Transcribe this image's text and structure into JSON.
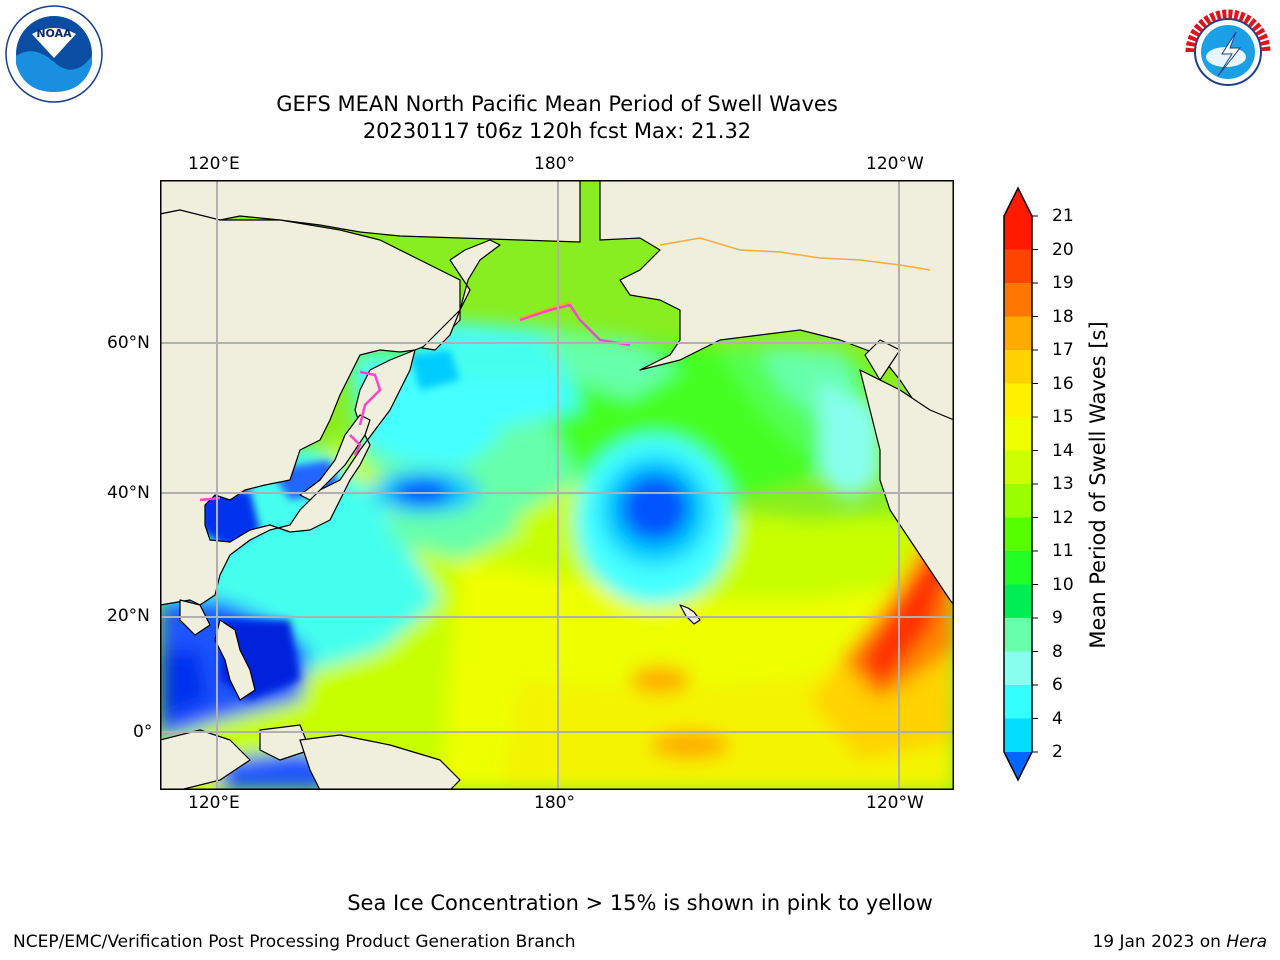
{
  "title_line1": "GEFS MEAN North Pacific Mean Period of Swell Waves",
  "title_line2": "20230117 t06z 120h fcst   Max: 21.32",
  "lon_ticks": [
    "120°E",
    "180°",
    "120°W"
  ],
  "lat_ticks": [
    "60°N",
    "40°N",
    "20°N",
    "0°"
  ],
  "colorbar": {
    "label": "Mean Period of Swell Waves [s]",
    "ticks": [
      "21",
      "20",
      "19",
      "18",
      "17",
      "16",
      "15",
      "14",
      "13",
      "12",
      "11",
      "10",
      "9",
      "8",
      "6",
      "4",
      "2"
    ],
    "colors": [
      "#ff1a00",
      "#ff4400",
      "#ff7700",
      "#ffaa00",
      "#ffd200",
      "#fff000",
      "#eeff00",
      "#ccff00",
      "#99ff00",
      "#55ff00",
      "#22ff22",
      "#00ee55",
      "#66ffaa",
      "#88ffee",
      "#33ffff",
      "#00ddff",
      "#0066ff"
    ]
  },
  "logos": {
    "noaa": "NOAA",
    "nws": "NATIONAL WEATHER SERVICE",
    "noaa_ring": "NATIONAL OCEANIC AND ATMOSPHERIC ADMINISTRATION · U.S. DEPARTMENT OF COMMERCE"
  },
  "colors": {
    "land": "#f0eedc",
    "ocean_base": "#88ee22",
    "grid": "#b0b0b0"
  },
  "note": "Sea Ice Concentration > 15% is shown in pink to yellow",
  "footer_left": "NCEP/EMC/Verification Post Processing Product Generation Branch",
  "footer_date": "19 Jan 2023 on ",
  "footer_machine": "Hera"
}
